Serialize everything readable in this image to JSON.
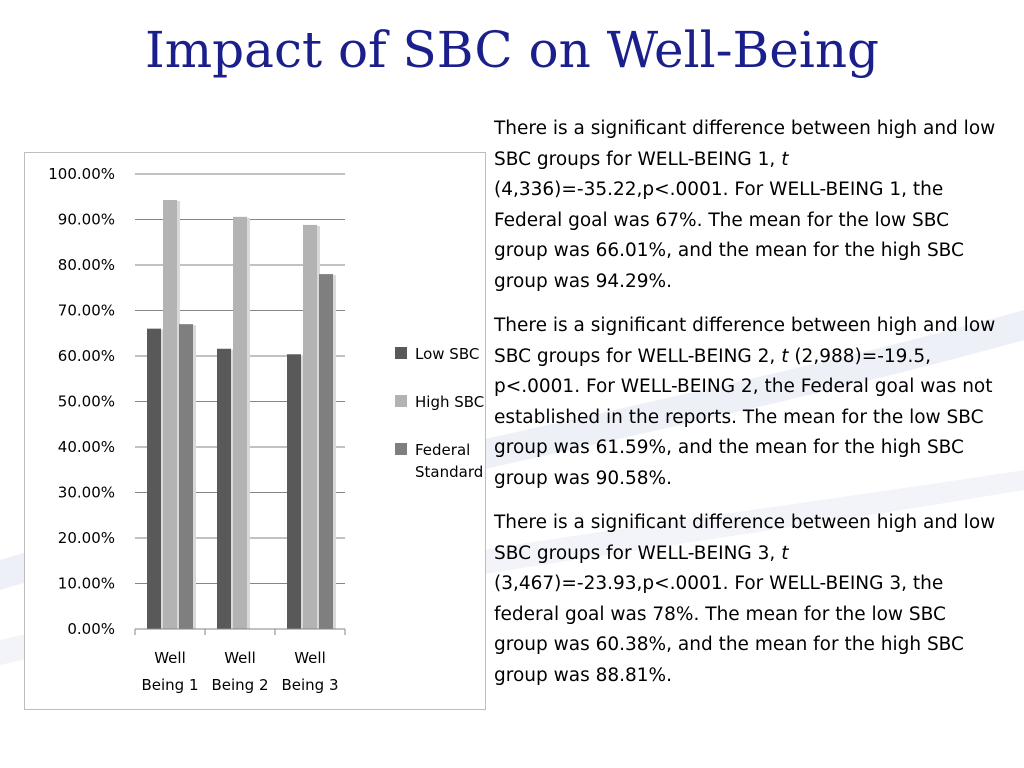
{
  "slide": {
    "title": "Impact of SBC on Well-Being"
  },
  "colors": {
    "title": "#1a1f8c",
    "low_sbc": "#595959",
    "high_sbc": "#b3b3b3",
    "federal_standard": "#7f7f7f",
    "gridline": "#868686"
  },
  "chart_data": {
    "type": "bar",
    "title": "",
    "xlabel": "",
    "ylabel": "",
    "ylim": [
      0,
      1
    ],
    "grid": true,
    "legend_position": "right",
    "y_ticks": [
      "0.00%",
      "10.00%",
      "20.00%",
      "30.00%",
      "40.00%",
      "50.00%",
      "60.00%",
      "70.00%",
      "80.00%",
      "90.00%",
      "100.00%"
    ],
    "categories": [
      [
        "Well",
        "Being 1"
      ],
      [
        "Well",
        "Being 2"
      ],
      [
        "Well",
        "Being 3"
      ]
    ],
    "series": [
      {
        "name": "Low SBC",
        "values": [
          0.6601,
          0.6159,
          0.6038
        ]
      },
      {
        "name": "High SBC",
        "values": [
          0.9429,
          0.9058,
          0.8881
        ]
      },
      {
        "name": "Federal Standard",
        "values": [
          0.67,
          null,
          0.78
        ]
      }
    ],
    "legend": {
      "items": [
        {
          "lines": [
            "Low SBC"
          ]
        },
        {
          "lines": [
            "High SBC"
          ]
        },
        {
          "lines": [
            "Federal",
            "Standard"
          ]
        }
      ]
    }
  },
  "text": {
    "paragraphs": [
      {
        "before": "There is a significant difference between high and low SBC groups for WELL-BEING 1, ",
        "stat": "t",
        "after": " (4,336)=-35.22,p<.0001. For WELL-BEING 1, the Federal goal was 67%. The mean for the low SBC group was 66.01%, and the mean for the high SBC group was 94.29%."
      },
      {
        "before": "There is a significant difference between high and low SBC groups for WELL-BEING 2, ",
        "stat": "t",
        "after": " (2,988)=-19.5, p<.0001. For WELL-BEING 2, the Federal goal was not established in the reports. The mean for the low SBC group was 61.59%, and the mean for the high SBC group was 90.58%."
      },
      {
        "before": "There is a significant difference between high and low SBC groups for WELL-BEING 3, ",
        "stat": "t",
        "after": " (3,467)=-23.93,p<.0001. For WELL-BEING 3, the federal goal was 78%. The mean for the low SBC group was 60.38%, and the mean for the high SBC group was 88.81%."
      }
    ]
  }
}
